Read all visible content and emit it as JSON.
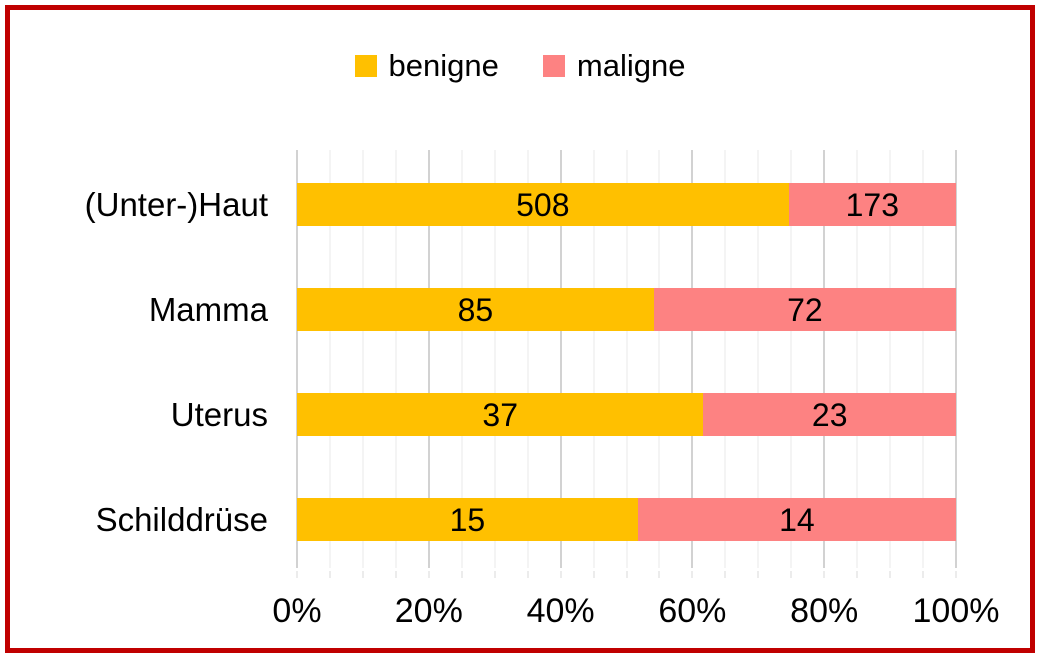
{
  "frame": {
    "border_color": "#C00000"
  },
  "legend": [
    {
      "label": "benigne",
      "color": "#FFC000"
    },
    {
      "label": "maligne",
      "color": "#FD8282"
    }
  ],
  "chart_data": {
    "type": "bar",
    "orientation": "horizontal",
    "stacked": true,
    "percent_stacked": true,
    "title": "",
    "xlabel": "",
    "ylabel": "",
    "categories": [
      "(Unter-)Haut",
      "Mamma",
      "Uterus",
      "Schilddrüse"
    ],
    "series": [
      {
        "name": "benigne",
        "color": "#FFC000",
        "values": [
          508,
          85,
          37,
          15
        ]
      },
      {
        "name": "maligne",
        "color": "#FD8282",
        "values": [
          173,
          72,
          23,
          14
        ]
      }
    ],
    "x_axis": {
      "range": [
        0,
        100
      ],
      "unit": "%",
      "ticks": [
        "0%",
        "20%",
        "40%",
        "60%",
        "80%",
        "100%"
      ],
      "minor_step": 5,
      "major_step": 20
    },
    "legend_position": "top",
    "grid": true
  }
}
